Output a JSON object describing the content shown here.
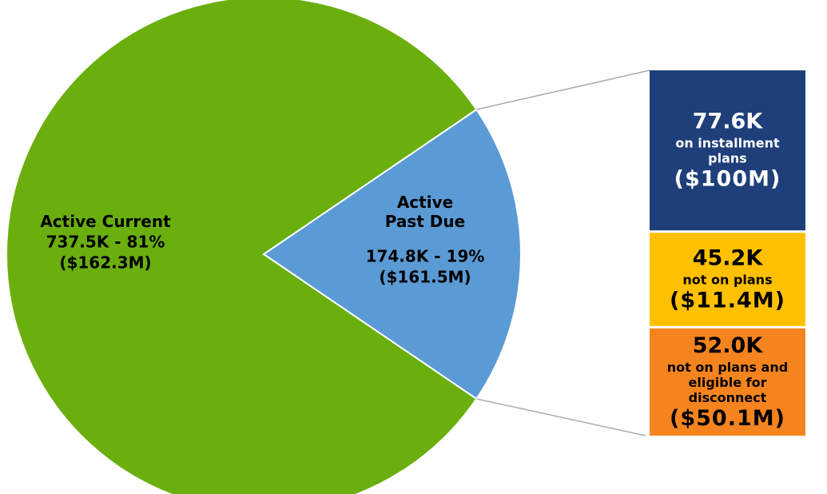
{
  "chart_data": [
    {
      "type": "pie",
      "categories": [
        "Active Current",
        "Active Past Due"
      ],
      "values": [
        81,
        19
      ],
      "value_labels": [
        "737.5K - 81%",
        "174.8K - 19%"
      ],
      "amounts": [
        "($162.3M)",
        "($161.5M)"
      ],
      "colors": [
        "#6aaf0e",
        "#5b9bd5"
      ]
    },
    {
      "type": "bar",
      "categories": [
        "on installment plans",
        "not on plans",
        "not on plans and eligible for disconnect"
      ],
      "values": [
        77.6,
        45.2,
        52.0
      ],
      "value_labels": [
        "77.6K",
        "45.2K",
        "52.0K"
      ],
      "amounts": [
        "($100M)",
        "($11.4M)",
        "($50.1M)"
      ],
      "colors": [
        "#1f3f7a",
        "#ffc000",
        "#f5841f"
      ],
      "text_colors": [
        "#ffffff",
        "#000000",
        "#000000"
      ]
    }
  ]
}
